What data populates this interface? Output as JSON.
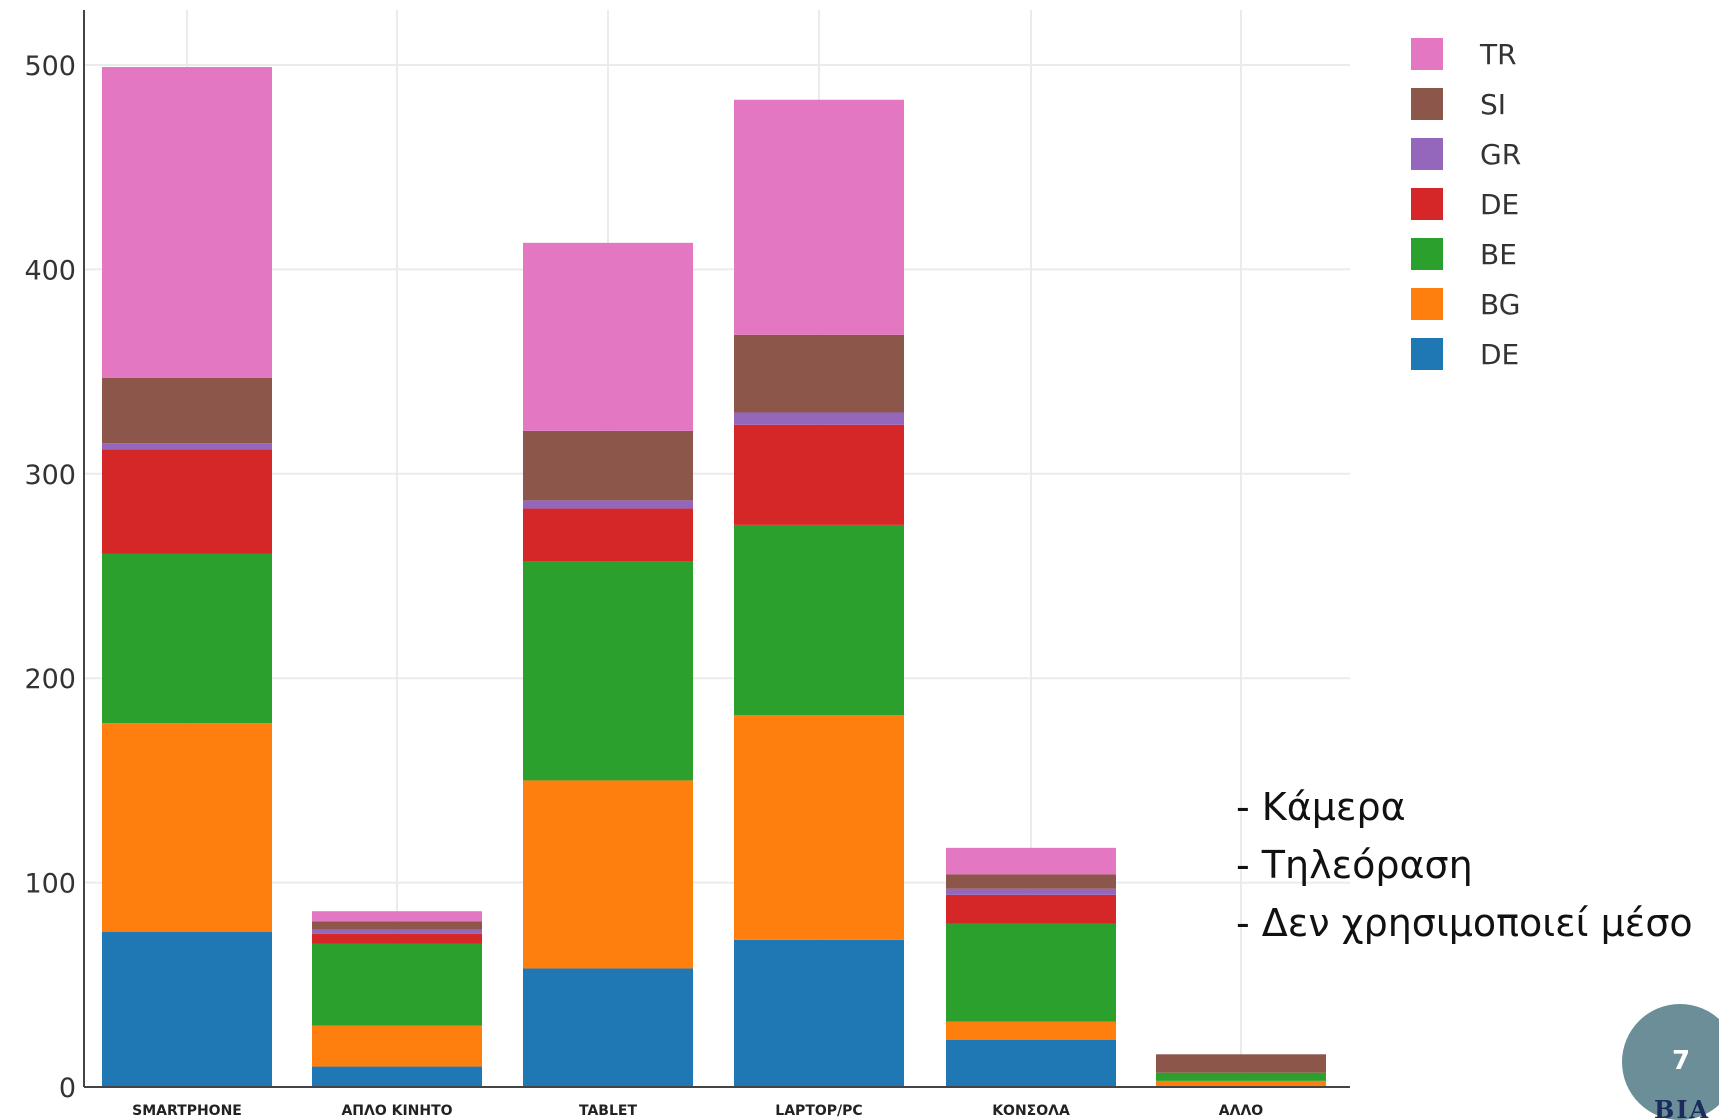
{
  "chart_data": {
    "type": "bar",
    "stacked": true,
    "categories": [
      "SMARTPHONE",
      "ΑΠΛΟ ΚΙΝΗΤΟ",
      "TABLET",
      "LAPTOP/PC",
      "ΚΟΝΣΟΛΑ",
      "ΑΛΛΟ"
    ],
    "series": [
      {
        "name": "DE",
        "color": "#1f77b4",
        "values": [
          76,
          10,
          58,
          72,
          23,
          0
        ]
      },
      {
        "name": "BG",
        "color": "#ff7f0e",
        "values": [
          102,
          20,
          92,
          110,
          9,
          3
        ]
      },
      {
        "name": "BE",
        "color": "#2ca02c",
        "values": [
          83,
          40,
          107,
          93,
          48,
          4
        ]
      },
      {
        "name": "DE",
        "color": "#d62728",
        "values": [
          51,
          5,
          26,
          49,
          14,
          0
        ]
      },
      {
        "name": "GR",
        "color": "#9467bd",
        "values": [
          3,
          2,
          4,
          6,
          3,
          0
        ]
      },
      {
        "name": "SI",
        "color": "#8c564b",
        "values": [
          32,
          4,
          34,
          38,
          7,
          9
        ]
      },
      {
        "name": "TR",
        "color": "#e377c2",
        "values": [
          152,
          5,
          92,
          115,
          13,
          0
        ]
      }
    ],
    "yticks": [
      0,
      100,
      200,
      300,
      400,
      500
    ],
    "ylim": [
      0,
      525
    ],
    "grid": true,
    "legend_position": "top-right"
  },
  "notes": [
    "- Κάμερα",
    "- Τηλεόραση",
    "- Δεν χρησιμοποιεί μέσο"
  ],
  "page_number": "7",
  "logo_text": "ΒΙΑ"
}
